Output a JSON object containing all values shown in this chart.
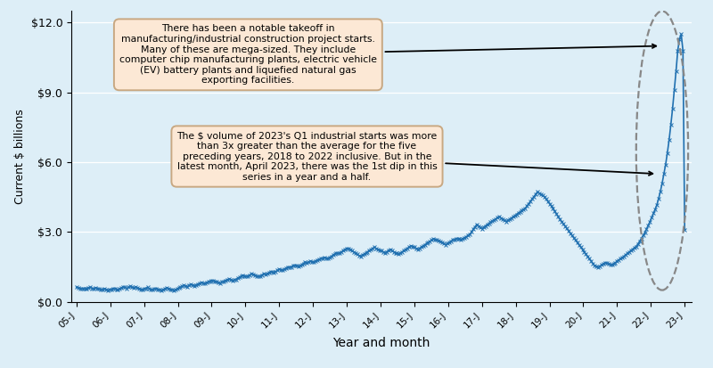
{
  "xlabel": "Year and month",
  "ylabel": "Current $ billions",
  "ylim": [
    0,
    12.5
  ],
  "yticks": [
    0,
    3,
    6,
    9,
    12
  ],
  "ytick_labels": [
    "$0.0",
    "$3.0",
    "$6.0",
    "$9.0",
    "$12.0"
  ],
  "background_color": "#ddeef7",
  "line_color": "#2070b0",
  "annotation1_text": "There has been a notable takeoff in\nmanufacturing/industrial construction project starts.\nMany of these are mega-sized. They include\ncomputer chip manufacturing plants, electric vehicle\n(EV) battery plants and liquefied natural gas\nexporting facilities.",
  "annotation2_text": "The $ volume of 2023's Q1 industrial starts was more\nthan 3x greater than the average for the five\npreceding years, 2018 to 2022 inclusive. But in the\nlatest month, April 2023, there was the 1st dip in this\nseries in a year and a half.",
  "xtick_labels": [
    "05-J",
    "06-J",
    "07-J",
    "08-J",
    "09-J",
    "10-J",
    "11-J",
    "12-J",
    "13-J",
    "14-J",
    "15-J",
    "16-J",
    "17-J",
    "18-J",
    "19-J",
    "20-J",
    "21-J",
    "22-J",
    "23-J"
  ],
  "data_values": [
    0.62,
    0.6,
    0.58,
    0.57,
    0.55,
    0.57,
    0.58,
    0.6,
    0.62,
    0.58,
    0.56,
    0.6,
    0.58,
    0.55,
    0.52,
    0.54,
    0.56,
    0.53,
    0.5,
    0.52,
    0.54,
    0.56,
    0.58,
    0.54,
    0.52,
    0.56,
    0.6,
    0.64,
    0.62,
    0.58,
    0.62,
    0.66,
    0.62,
    0.59,
    0.63,
    0.6,
    0.57,
    0.54,
    0.52,
    0.55,
    0.58,
    0.62,
    0.56,
    0.53,
    0.52,
    0.55,
    0.58,
    0.53,
    0.51,
    0.49,
    0.52,
    0.56,
    0.6,
    0.57,
    0.54,
    0.52,
    0.49,
    0.51,
    0.55,
    0.6,
    0.63,
    0.66,
    0.7,
    0.68,
    0.65,
    0.7,
    0.75,
    0.72,
    0.69,
    0.73,
    0.76,
    0.79,
    0.83,
    0.8,
    0.78,
    0.82,
    0.85,
    0.88,
    0.92,
    0.9,
    0.88,
    0.85,
    0.82,
    0.8,
    0.85,
    0.88,
    0.92,
    0.95,
    0.98,
    0.95,
    0.91,
    0.93,
    0.96,
    1.01,
    1.05,
    1.1,
    1.14,
    1.11,
    1.08,
    1.1,
    1.15,
    1.2,
    1.18,
    1.15,
    1.1,
    1.08,
    1.1,
    1.15,
    1.2,
    1.18,
    1.2,
    1.25,
    1.3,
    1.28,
    1.25,
    1.3,
    1.35,
    1.4,
    1.38,
    1.35,
    1.4,
    1.45,
    1.5,
    1.48,
    1.5,
    1.55,
    1.57,
    1.54,
    1.52,
    1.55,
    1.6,
    1.65,
    1.7,
    1.68,
    1.7,
    1.75,
    1.72,
    1.7,
    1.75,
    1.8,
    1.82,
    1.85,
    1.88,
    1.9,
    1.88,
    1.85,
    1.9,
    1.95,
    2.0,
    2.05,
    2.1,
    2.08,
    2.1,
    2.15,
    2.2,
    2.25,
    2.3,
    2.28,
    2.24,
    2.19,
    2.14,
    2.09,
    2.04,
    1.99,
    1.95,
    2.0,
    2.05,
    2.1,
    2.15,
    2.2,
    2.25,
    2.3,
    2.35,
    2.28,
    2.25,
    2.22,
    2.19,
    2.15,
    2.1,
    2.15,
    2.2,
    2.25,
    2.2,
    2.15,
    2.1,
    2.08,
    2.05,
    2.1,
    2.15,
    2.2,
    2.25,
    2.3,
    2.35,
    2.4,
    2.38,
    2.35,
    2.3,
    2.25,
    2.3,
    2.35,
    2.4,
    2.45,
    2.5,
    2.55,
    2.6,
    2.65,
    2.7,
    2.68,
    2.65,
    2.62,
    2.59,
    2.55,
    2.5,
    2.45,
    2.5,
    2.55,
    2.6,
    2.65,
    2.68,
    2.7,
    2.72,
    2.7,
    2.68,
    2.72,
    2.76,
    2.8,
    2.85,
    2.9,
    3.0,
    3.12,
    3.22,
    3.32,
    3.26,
    3.2,
    3.14,
    3.2,
    3.26,
    3.32,
    3.36,
    3.42,
    3.46,
    3.52,
    3.56,
    3.62,
    3.66,
    3.6,
    3.55,
    3.5,
    3.45,
    3.5,
    3.55,
    3.6,
    3.65,
    3.7,
    3.76,
    3.82,
    3.86,
    3.92,
    3.97,
    4.02,
    4.12,
    4.22,
    4.32,
    4.42,
    4.52,
    4.62,
    4.72,
    4.67,
    4.62,
    4.57,
    4.52,
    4.42,
    4.32,
    4.22,
    4.12,
    4.02,
    3.9,
    3.78,
    3.66,
    3.55,
    3.45,
    3.35,
    3.25,
    3.15,
    3.05,
    2.95,
    2.85,
    2.75,
    2.65,
    2.55,
    2.45,
    2.35,
    2.25,
    2.15,
    2.05,
    1.95,
    1.85,
    1.75,
    1.65,
    1.55,
    1.52,
    1.49,
    1.53,
    1.58,
    1.63,
    1.68,
    1.66,
    1.63,
    1.6,
    1.58,
    1.63,
    1.68,
    1.75,
    1.8,
    1.85,
    1.9,
    1.96,
    2.02,
    2.08,
    2.14,
    2.2,
    2.26,
    2.32,
    2.38,
    2.48,
    2.6,
    2.72,
    2.85,
    2.98,
    3.12,
    3.28,
    3.45,
    3.62,
    3.8,
    3.98,
    4.18,
    4.45,
    4.75,
    5.1,
    5.5,
    5.9,
    6.4,
    6.95,
    7.6,
    8.3,
    9.1,
    9.9,
    10.8,
    11.3,
    11.5,
    10.8,
    3.1
  ]
}
